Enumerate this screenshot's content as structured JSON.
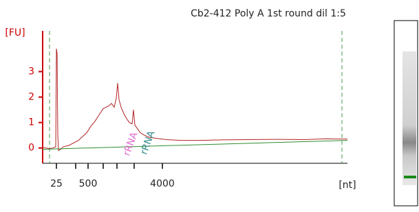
{
  "chart_data": {
    "type": "line",
    "title": "Cb2-412 Poly A 1st round dil 1:5",
    "y_label": "[FU]",
    "x_label": "[nt]",
    "xlim": [
      0,
      443
    ],
    "ylim": [
      -0.6,
      4.6
    ],
    "yticks": [
      0,
      1,
      2,
      3
    ],
    "xticks": [
      {
        "value": 20,
        "label": "25"
      },
      {
        "value": 48,
        "label": null
      },
      {
        "value": 66,
        "label": "500"
      },
      {
        "value": 88,
        "label": null
      },
      {
        "value": 108,
        "label": null
      },
      {
        "value": 133,
        "label": null
      },
      {
        "value": 174,
        "label": "4000"
      }
    ],
    "markers": [
      10,
      435
    ],
    "annotations": [
      {
        "text": "rRNA",
        "x": 122,
        "y": 0.3,
        "color": "#e070d0"
      },
      {
        "text": "rRNA",
        "x": 147,
        "y": 0.35,
        "color": "#3a8a8a"
      }
    ],
    "series": [
      {
        "color": "#b22222",
        "x": [
          0,
          5,
          10,
          15,
          19,
          20,
          21,
          22,
          23,
          26,
          30,
          38,
          45,
          52,
          58,
          64,
          70,
          76,
          82,
          88,
          92,
          96,
          100,
          104,
          107,
          109,
          111,
          114,
          118,
          122,
          126,
          130,
          132,
          134,
          138,
          142,
          148,
          155,
          165,
          180,
          200,
          230,
          260,
          300,
          340,
          380,
          410,
          443
        ],
        "values": [
          0.02,
          0.0,
          -0.02,
          0.0,
          0.05,
          3.9,
          3.7,
          0.5,
          -0.1,
          -0.05,
          0.05,
          0.1,
          0.2,
          0.3,
          0.45,
          0.6,
          0.85,
          1.05,
          1.3,
          1.55,
          1.6,
          1.65,
          1.75,
          1.6,
          1.95,
          2.55,
          1.9,
          1.6,
          1.35,
          1.15,
          1.0,
          0.95,
          1.5,
          0.9,
          0.75,
          0.6,
          0.5,
          0.42,
          0.38,
          0.33,
          0.3,
          0.3,
          0.32,
          0.33,
          0.34,
          0.33,
          0.36,
          0.35
        ]
      },
      {
        "color": "#2e8b2e",
        "x": [
          0,
          443
        ],
        "values": [
          -0.05,
          0.3
        ]
      }
    ]
  }
}
